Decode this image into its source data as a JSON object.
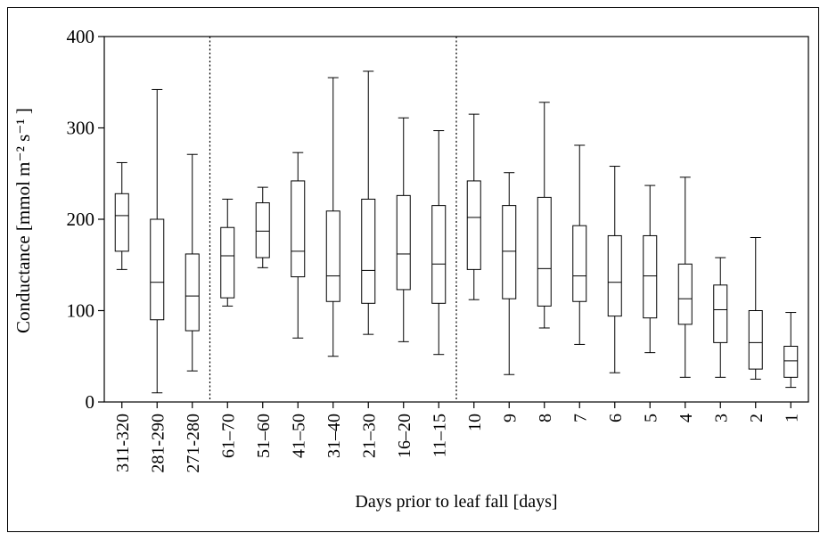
{
  "chart_data": {
    "type": "box",
    "xlabel": "Days prior to leaf fall [days]",
    "ylabel": "Conductance [mmol m⁻² s⁻¹ ]",
    "ylim": [
      0,
      400
    ],
    "yticks": [
      0,
      100,
      200,
      300,
      400
    ],
    "grid": false,
    "groups": [
      {
        "categories": [
          "311-320",
          "281-290",
          "271-280"
        ],
        "boxes": [
          {
            "min": 145,
            "q1": 165,
            "median": 204,
            "q3": 228,
            "max": 262
          },
          {
            "min": 10,
            "q1": 90,
            "median": 131,
            "q3": 200,
            "max": 342
          },
          {
            "min": 34,
            "q1": 78,
            "median": 116,
            "q3": 162,
            "max": 271
          }
        ]
      },
      {
        "categories": [
          "61–70",
          "51–60",
          "41–50",
          "31–40",
          "21–30",
          "16–20",
          "11–15"
        ],
        "boxes": [
          {
            "min": 105,
            "q1": 114,
            "median": 160,
            "q3": 191,
            "max": 222
          },
          {
            "min": 147,
            "q1": 158,
            "median": 187,
            "q3": 218,
            "max": 235
          },
          {
            "min": 70,
            "q1": 137,
            "median": 165,
            "q3": 242,
            "max": 273
          },
          {
            "min": 50,
            "q1": 110,
            "median": 138,
            "q3": 209,
            "max": 355
          },
          {
            "min": 74,
            "q1": 108,
            "median": 144,
            "q3": 222,
            "max": 362
          },
          {
            "min": 66,
            "q1": 123,
            "median": 162,
            "q3": 226,
            "max": 311
          },
          {
            "min": 52,
            "q1": 108,
            "median": 151,
            "q3": 215,
            "max": 297
          }
        ]
      },
      {
        "categories": [
          "10",
          "9",
          "8",
          "7",
          "6",
          "5",
          "4",
          "3",
          "2",
          "1"
        ],
        "boxes": [
          {
            "min": 112,
            "q1": 145,
            "median": 202,
            "q3": 242,
            "max": 315
          },
          {
            "min": 30,
            "q1": 113,
            "median": 165,
            "q3": 215,
            "max": 251
          },
          {
            "min": 81,
            "q1": 105,
            "median": 146,
            "q3": 224,
            "max": 328
          },
          {
            "min": 63,
            "q1": 110,
            "median": 138,
            "q3": 193,
            "max": 281
          },
          {
            "min": 32,
            "q1": 94,
            "median": 131,
            "q3": 182,
            "max": 258
          },
          {
            "min": 54,
            "q1": 92,
            "median": 138,
            "q3": 182,
            "max": 237
          },
          {
            "min": 27,
            "q1": 85,
            "median": 113,
            "q3": 151,
            "max": 246
          },
          {
            "min": 27,
            "q1": 65,
            "median": 101,
            "q3": 128,
            "max": 158
          },
          {
            "min": 25,
            "q1": 36,
            "median": 65,
            "q3": 100,
            "max": 180
          },
          {
            "min": 16,
            "q1": 27,
            "median": 45,
            "q3": 61,
            "max": 98
          }
        ]
      }
    ]
  }
}
